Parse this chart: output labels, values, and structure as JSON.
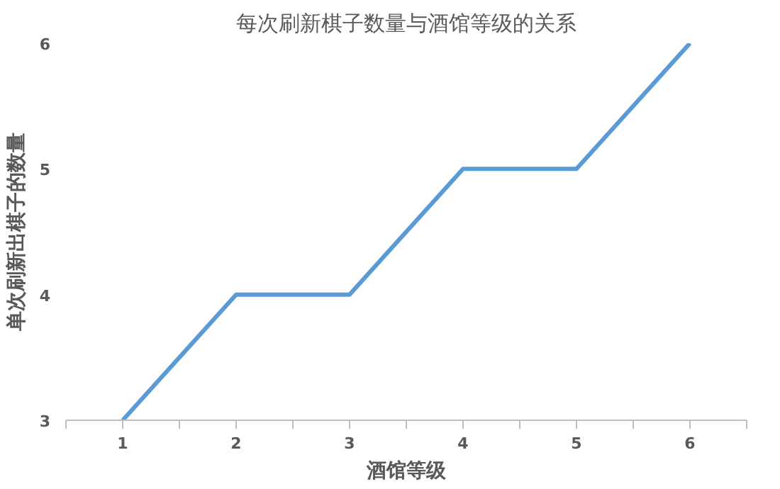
{
  "chart_data": {
    "type": "line",
    "title": "每次刷新棋子数量与酒馆等级的关系",
    "xlabel": "酒馆等级",
    "ylabel": "单次刷新出棋子的数量",
    "categories": [
      "1",
      "2",
      "3",
      "4",
      "5",
      "6"
    ],
    "series": [
      {
        "color": "#5b9bd5",
        "values": [
          3,
          4,
          4,
          5,
          5,
          6
        ]
      }
    ],
    "ylim": [
      3,
      6
    ],
    "yticks": [
      3,
      4,
      5,
      6
    ],
    "grid": false,
    "marker": "none",
    "line_style": "solid"
  }
}
